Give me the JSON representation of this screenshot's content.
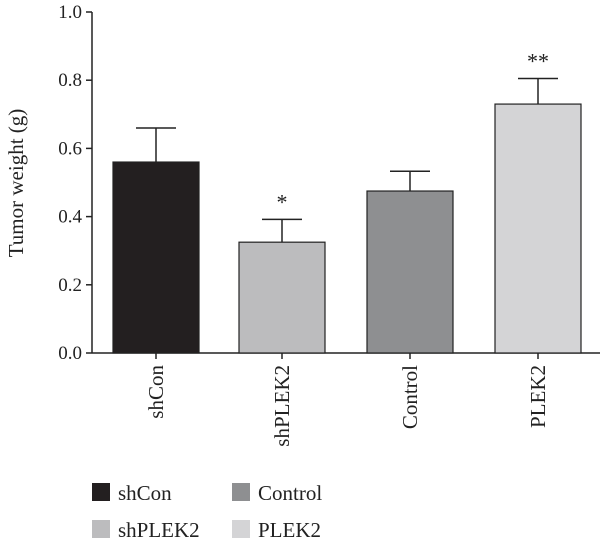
{
  "chart_data": {
    "type": "bar",
    "ylabel": "Tumor weight (g)",
    "xlabel": "",
    "ylim": [
      0,
      1.0
    ],
    "yticks": [
      0.0,
      0.2,
      0.4,
      0.6,
      0.8,
      1.0
    ],
    "ytick_labels": [
      "0.0",
      "0.2",
      "0.4",
      "0.6",
      "0.8",
      "1.0"
    ],
    "categories": [
      "shCon",
      "shPLEK2",
      "Control",
      "PLEK2"
    ],
    "values": [
      0.56,
      0.325,
      0.475,
      0.73
    ],
    "errors": [
      0.1,
      0.067,
      0.058,
      0.075
    ],
    "significance": [
      "",
      "*",
      "",
      "**"
    ],
    "colors": [
      "#231f20",
      "#bcbcbe",
      "#8e8f91",
      "#d4d4d6"
    ],
    "grid": false,
    "legend": {
      "placement": "bottom",
      "entries": [
        {
          "label": "shCon",
          "color": "#231f20"
        },
        {
          "label": "Control",
          "color": "#8e8f91"
        },
        {
          "label": "shPLEK2",
          "color": "#bcbcbe"
        },
        {
          "label": "PLEK2",
          "color": "#d4d4d6"
        }
      ]
    }
  }
}
